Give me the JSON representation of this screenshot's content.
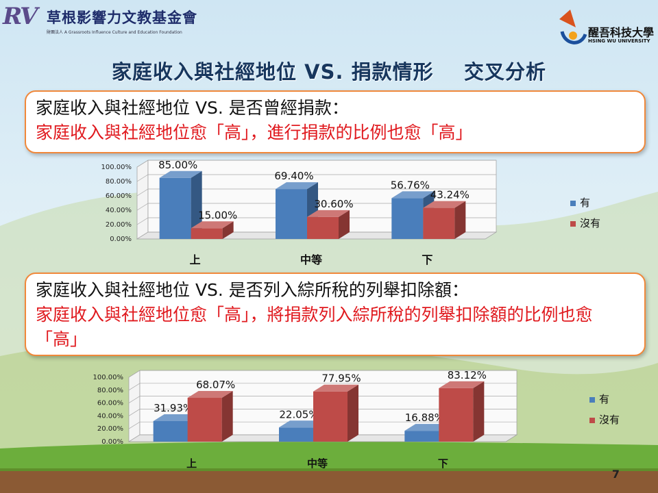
{
  "header": {
    "left_logo_mark": "RV",
    "left_logo_name": "草根影響力文教基金會",
    "left_logo_sub": "財團法人 A Grassroots Influence Culture and Education Foundation",
    "right_logo_name": "醒吾科技大學",
    "right_logo_sub": "HSING WU UNIVERSITY"
  },
  "slide": {
    "title": "家庭收入與社經地位 VS. 捐款情形    交叉分析",
    "page_number": "7"
  },
  "sections": [
    {
      "question": "家庭收入與社經地位 VS. 是否曾經捐款：",
      "answer": "家庭收入與社經地位愈「高」，進行捐款的比例也愈「高」"
    },
    {
      "question": "家庭收入與社經地位 VS. 是否列入綜所稅的列舉扣除額：",
      "answer": "家庭收入與社經地位愈「高」，將捐款列入綜所稅的列舉扣除額的比例也愈「高」"
    }
  ],
  "chart_data": [
    {
      "type": "bar",
      "categories": [
        "上",
        "中等",
        "下"
      ],
      "series": [
        {
          "name": "有",
          "values": [
            85.0,
            69.4,
            56.76
          ],
          "labels": [
            "85.00%",
            "69.40%",
            "56.76%"
          ],
          "color": "#4a7ebb"
        },
        {
          "name": "沒有",
          "values": [
            15.0,
            30.6,
            43.24
          ],
          "labels": [
            "15.00%",
            "30.60%",
            "43.24%"
          ],
          "color": "#be4b48"
        }
      ],
      "yticks": [
        "0.00%",
        "20.00%",
        "40.00%",
        "60.00%",
        "80.00%",
        "100.00%"
      ],
      "ylim": [
        0,
        100
      ],
      "legend": "right",
      "grid": true
    },
    {
      "type": "bar",
      "categories": [
        "上",
        "中等",
        "下"
      ],
      "series": [
        {
          "name": "有",
          "values": [
            31.93,
            22.05,
            16.88
          ],
          "labels": [
            "31.93%",
            "22.05%",
            "16.88%"
          ],
          "color": "#4a7ebb"
        },
        {
          "name": "沒有",
          "values": [
            68.07,
            77.95,
            83.12
          ],
          "labels": [
            "68.07%",
            "77.95%",
            "83.12%"
          ],
          "color": "#be4b48"
        }
      ],
      "yticks": [
        "0.00%",
        "20.00%",
        "40.00%",
        "60.00%",
        "80.00%",
        "100.00%"
      ],
      "ylim": [
        0,
        100
      ],
      "legend": "right",
      "grid": true
    }
  ]
}
